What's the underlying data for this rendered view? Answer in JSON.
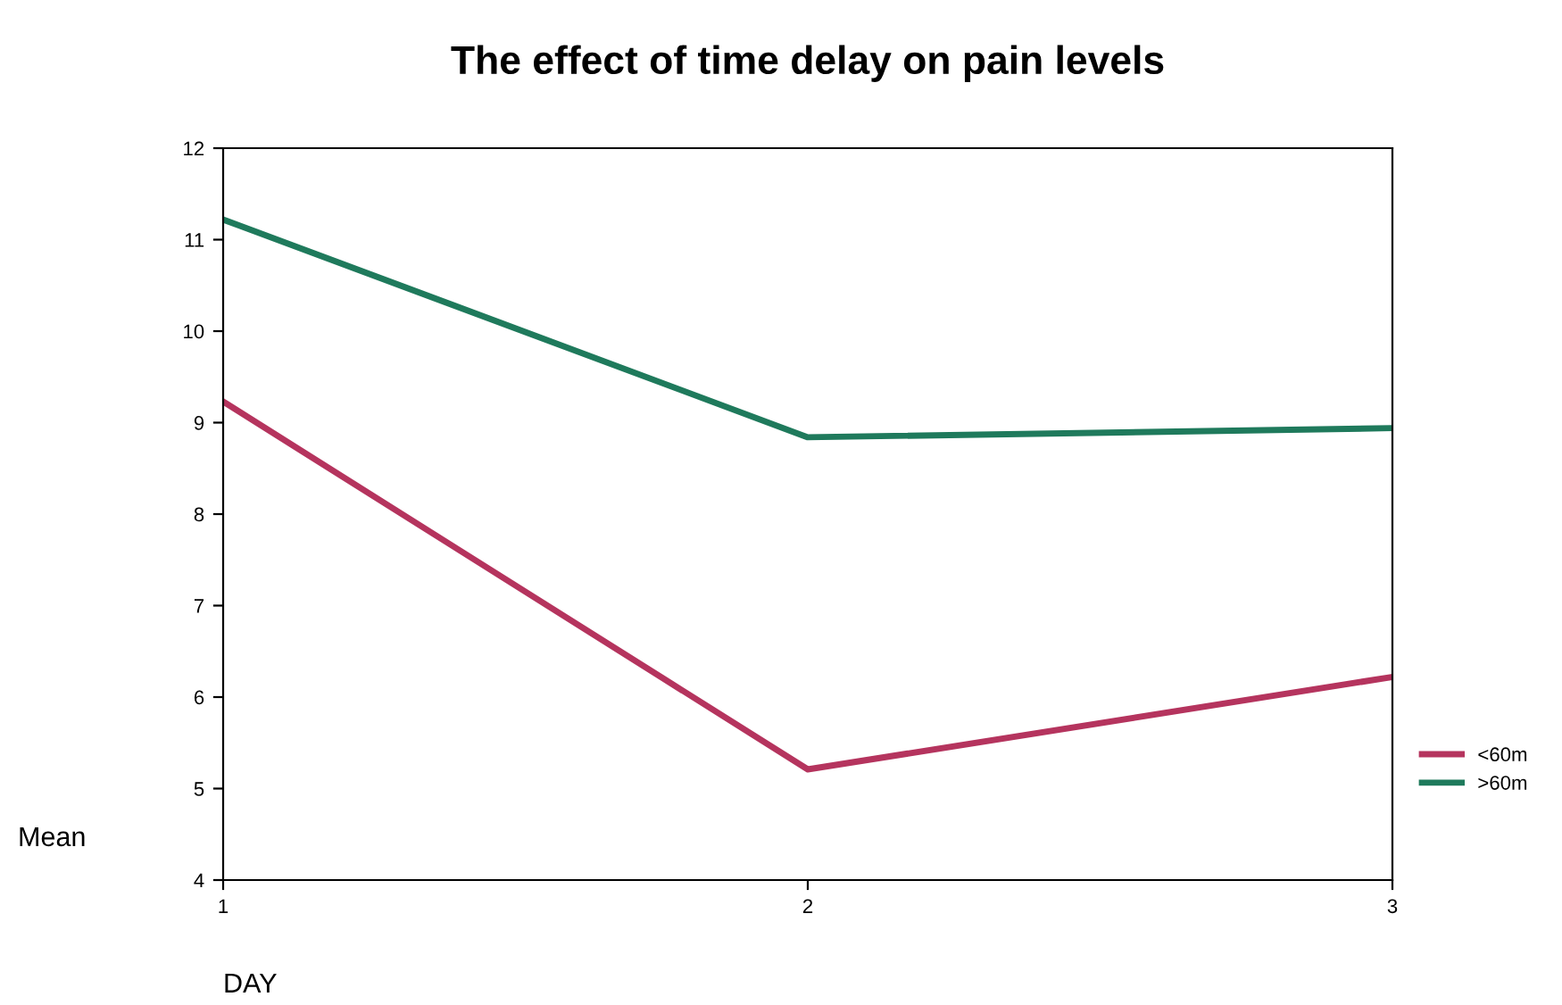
{
  "chart_data": {
    "type": "line",
    "title": "The effect of time delay on pain levels",
    "xlabel": "DAY",
    "ylabel": "Mean",
    "x": [
      1,
      2,
      3
    ],
    "series": [
      {
        "name": "<60m",
        "color": "#b5345e",
        "values": [
          9.23,
          5.21,
          6.22
        ]
      },
      {
        "name": ">60m",
        "color": "#1f7a5c",
        "values": [
          11.22,
          8.84,
          8.94
        ]
      }
    ],
    "xlim": [
      1,
      3
    ],
    "xticks": [
      1,
      2,
      3
    ],
    "ylim": [
      4,
      12
    ],
    "yticks": [
      4,
      5,
      6,
      7,
      8,
      9,
      10,
      11,
      12
    ],
    "grid": false,
    "legend": "right",
    "marker": "none",
    "line_style": "solid"
  }
}
